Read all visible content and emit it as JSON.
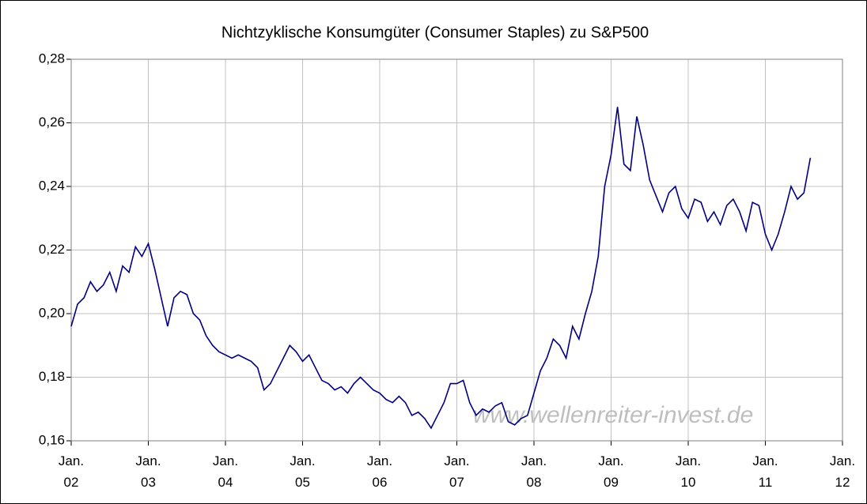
{
  "chart_data": {
    "type": "line",
    "title": "Nichtzyklische Konsumgüter (Consumer Staples) zu S&P500",
    "annotation": "www.wellenreiter-invest.de",
    "categories": [
      "Jan.\n02",
      null,
      null,
      null,
      null,
      null,
      null,
      null,
      null,
      null,
      null,
      null,
      "Jan.\n03",
      null,
      null,
      null,
      null,
      null,
      null,
      null,
      null,
      null,
      null,
      null,
      "Jan.\n04",
      null,
      null,
      null,
      null,
      null,
      null,
      null,
      null,
      null,
      null,
      null,
      "Jan.\n05",
      null,
      null,
      null,
      null,
      null,
      null,
      null,
      null,
      null,
      null,
      null,
      "Jan.\n06",
      null,
      null,
      null,
      null,
      null,
      null,
      null,
      null,
      null,
      null,
      null,
      "Jan.\n07",
      null,
      null,
      null,
      null,
      null,
      null,
      null,
      null,
      null,
      null,
      null,
      "Jan.\n08",
      null,
      null,
      null,
      null,
      null,
      null,
      null,
      null,
      null,
      null,
      null,
      "Jan.\n09",
      null,
      null,
      null,
      null,
      null,
      null,
      null,
      null,
      null,
      null,
      null,
      "Jan.\n10",
      null,
      null,
      null,
      null,
      null,
      null,
      null,
      null,
      null,
      null,
      null,
      "Jan.\n11",
      null,
      null,
      null,
      null,
      null,
      null,
      null,
      null,
      null,
      null,
      null,
      "Jan.\n12"
    ],
    "series": [
      {
        "name": "Consumer Staples zu S&P500",
        "color": "#000080",
        "values": [
          0.196,
          0.203,
          0.205,
          0.21,
          0.207,
          0.209,
          0.213,
          0.207,
          0.215,
          0.213,
          0.221,
          0.218,
          0.222,
          0.214,
          0.205,
          0.196,
          0.205,
          0.207,
          0.206,
          0.2,
          0.198,
          0.193,
          0.19,
          0.188,
          0.187,
          0.186,
          0.187,
          0.186,
          0.185,
          0.183,
          0.176,
          0.178,
          0.182,
          0.186,
          0.19,
          0.188,
          0.185,
          0.187,
          0.183,
          0.179,
          0.178,
          0.176,
          0.177,
          0.175,
          0.178,
          0.18,
          0.178,
          0.176,
          0.175,
          0.173,
          0.172,
          0.174,
          0.172,
          0.168,
          0.169,
          0.167,
          0.164,
          0.168,
          0.172,
          0.178,
          0.178,
          0.179,
          0.172,
          0.168,
          0.17,
          0.169,
          0.171,
          0.172,
          0.166,
          0.165,
          0.167,
          0.168,
          0.175,
          0.182,
          0.186,
          0.192,
          0.19,
          0.186,
          0.196,
          0.192,
          0.2,
          0.207,
          0.218,
          0.24,
          0.25,
          0.265,
          0.247,
          0.245,
          0.262,
          0.253,
          0.242,
          0.237,
          0.232,
          0.238,
          0.24,
          0.233,
          0.23,
          0.236,
          0.235,
          0.229,
          0.232,
          0.228,
          0.234,
          0.236,
          0.232,
          0.226,
          0.235,
          0.234,
          0.225,
          0.22,
          0.225,
          0.232,
          0.24,
          0.236,
          0.238,
          0.249,
          null,
          null,
          null,
          null,
          null
        ]
      }
    ],
    "ylim": [
      0.16,
      0.28
    ],
    "yticks": [
      {
        "value": 0.16,
        "label": "0,16"
      },
      {
        "value": 0.18,
        "label": "0,18"
      },
      {
        "value": 0.2,
        "label": "0,20"
      },
      {
        "value": 0.22,
        "label": "0,22"
      },
      {
        "value": 0.24,
        "label": "0,24"
      },
      {
        "value": 0.26,
        "label": "0,26"
      },
      {
        "value": 0.28,
        "label": "0,28"
      }
    ],
    "grid": true
  }
}
